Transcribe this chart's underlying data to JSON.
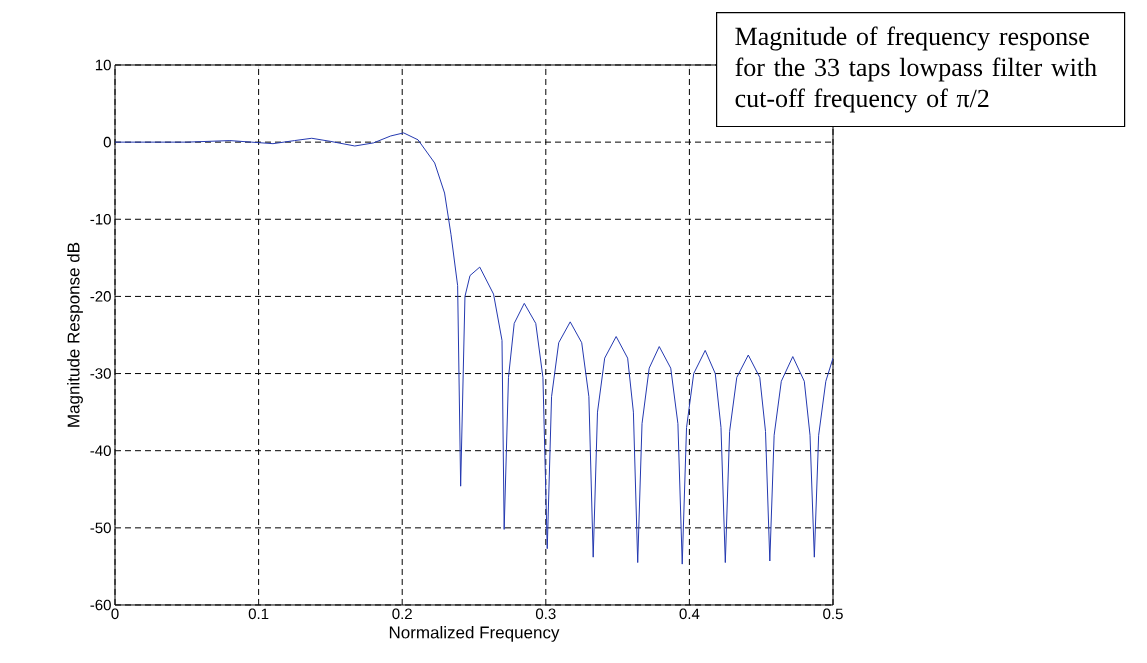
{
  "chart_data": {
    "type": "line",
    "xlabel": "Normalized Frequency",
    "ylabel": "Magnitude Response dB",
    "annotations": [
      "Magnitude of frequency response for the 33 taps lowpass filter with cut-off frequency of π/2"
    ],
    "x": [
      0,
      0.03,
      0.05,
      0.065,
      0.08,
      0.095,
      0.11,
      0.125,
      0.137,
      0.15,
      0.167,
      0.18,
      0.192,
      0.201,
      0.211,
      0.2226,
      0.2295,
      0.234,
      0.2386,
      0.2407,
      0.2437,
      0.2472,
      0.254,
      0.2636,
      0.2695,
      0.271,
      0.274,
      0.278,
      0.285,
      0.293,
      0.298,
      0.301,
      0.304,
      0.309,
      0.317,
      0.325,
      0.33,
      0.333,
      0.336,
      0.341,
      0.349,
      0.357,
      0.361,
      0.364,
      0.367,
      0.372,
      0.379,
      0.387,
      0.392,
      0.395,
      0.398,
      0.403,
      0.411,
      0.418,
      0.422,
      0.425,
      0.428,
      0.433,
      0.441,
      0.449,
      0.453,
      0.456,
      0.459,
      0.464,
      0.472,
      0.48,
      0.484,
      0.487,
      0.49,
      0.495,
      0.5
    ],
    "values": [
      0,
      0,
      0,
      0.1,
      0.2,
      0,
      -0.2,
      0.2,
      0.5,
      0.1,
      -0.5,
      -0.1,
      0.8,
      1.2,
      0.3,
      -2.7,
      -6.6,
      -12,
      -18.6,
      -44.6,
      -20,
      -17.3,
      -16.2,
      -19.7,
      -25.7,
      -50.2,
      -30.5,
      -23.5,
      -20.9,
      -23.5,
      -30.5,
      -52.7,
      -33,
      -26,
      -23.3,
      -26,
      -33,
      -53.8,
      -35,
      -28,
      -25.2,
      -28,
      -35,
      -54.5,
      -36.5,
      -29.3,
      -26.5,
      -29.3,
      -36.5,
      -54.7,
      -37,
      -30,
      -27,
      -30,
      -37,
      -54.5,
      -37.5,
      -30.5,
      -27.6,
      -30.5,
      -37.5,
      -54.3,
      -38,
      -31,
      -27.8,
      -31,
      -38,
      -53.8,
      -38,
      -31,
      -28
    ],
    "color": "#2338b0",
    "line_style": "solid",
    "xlim": [
      0,
      0.5
    ],
    "ylim": [
      -60,
      10
    ],
    "xticks": [
      0,
      0.1,
      0.2,
      0.3,
      0.4,
      0.5
    ],
    "yticks": [
      -60,
      -50,
      -40,
      -30,
      -20,
      -10,
      0,
      10
    ],
    "grid": true
  }
}
